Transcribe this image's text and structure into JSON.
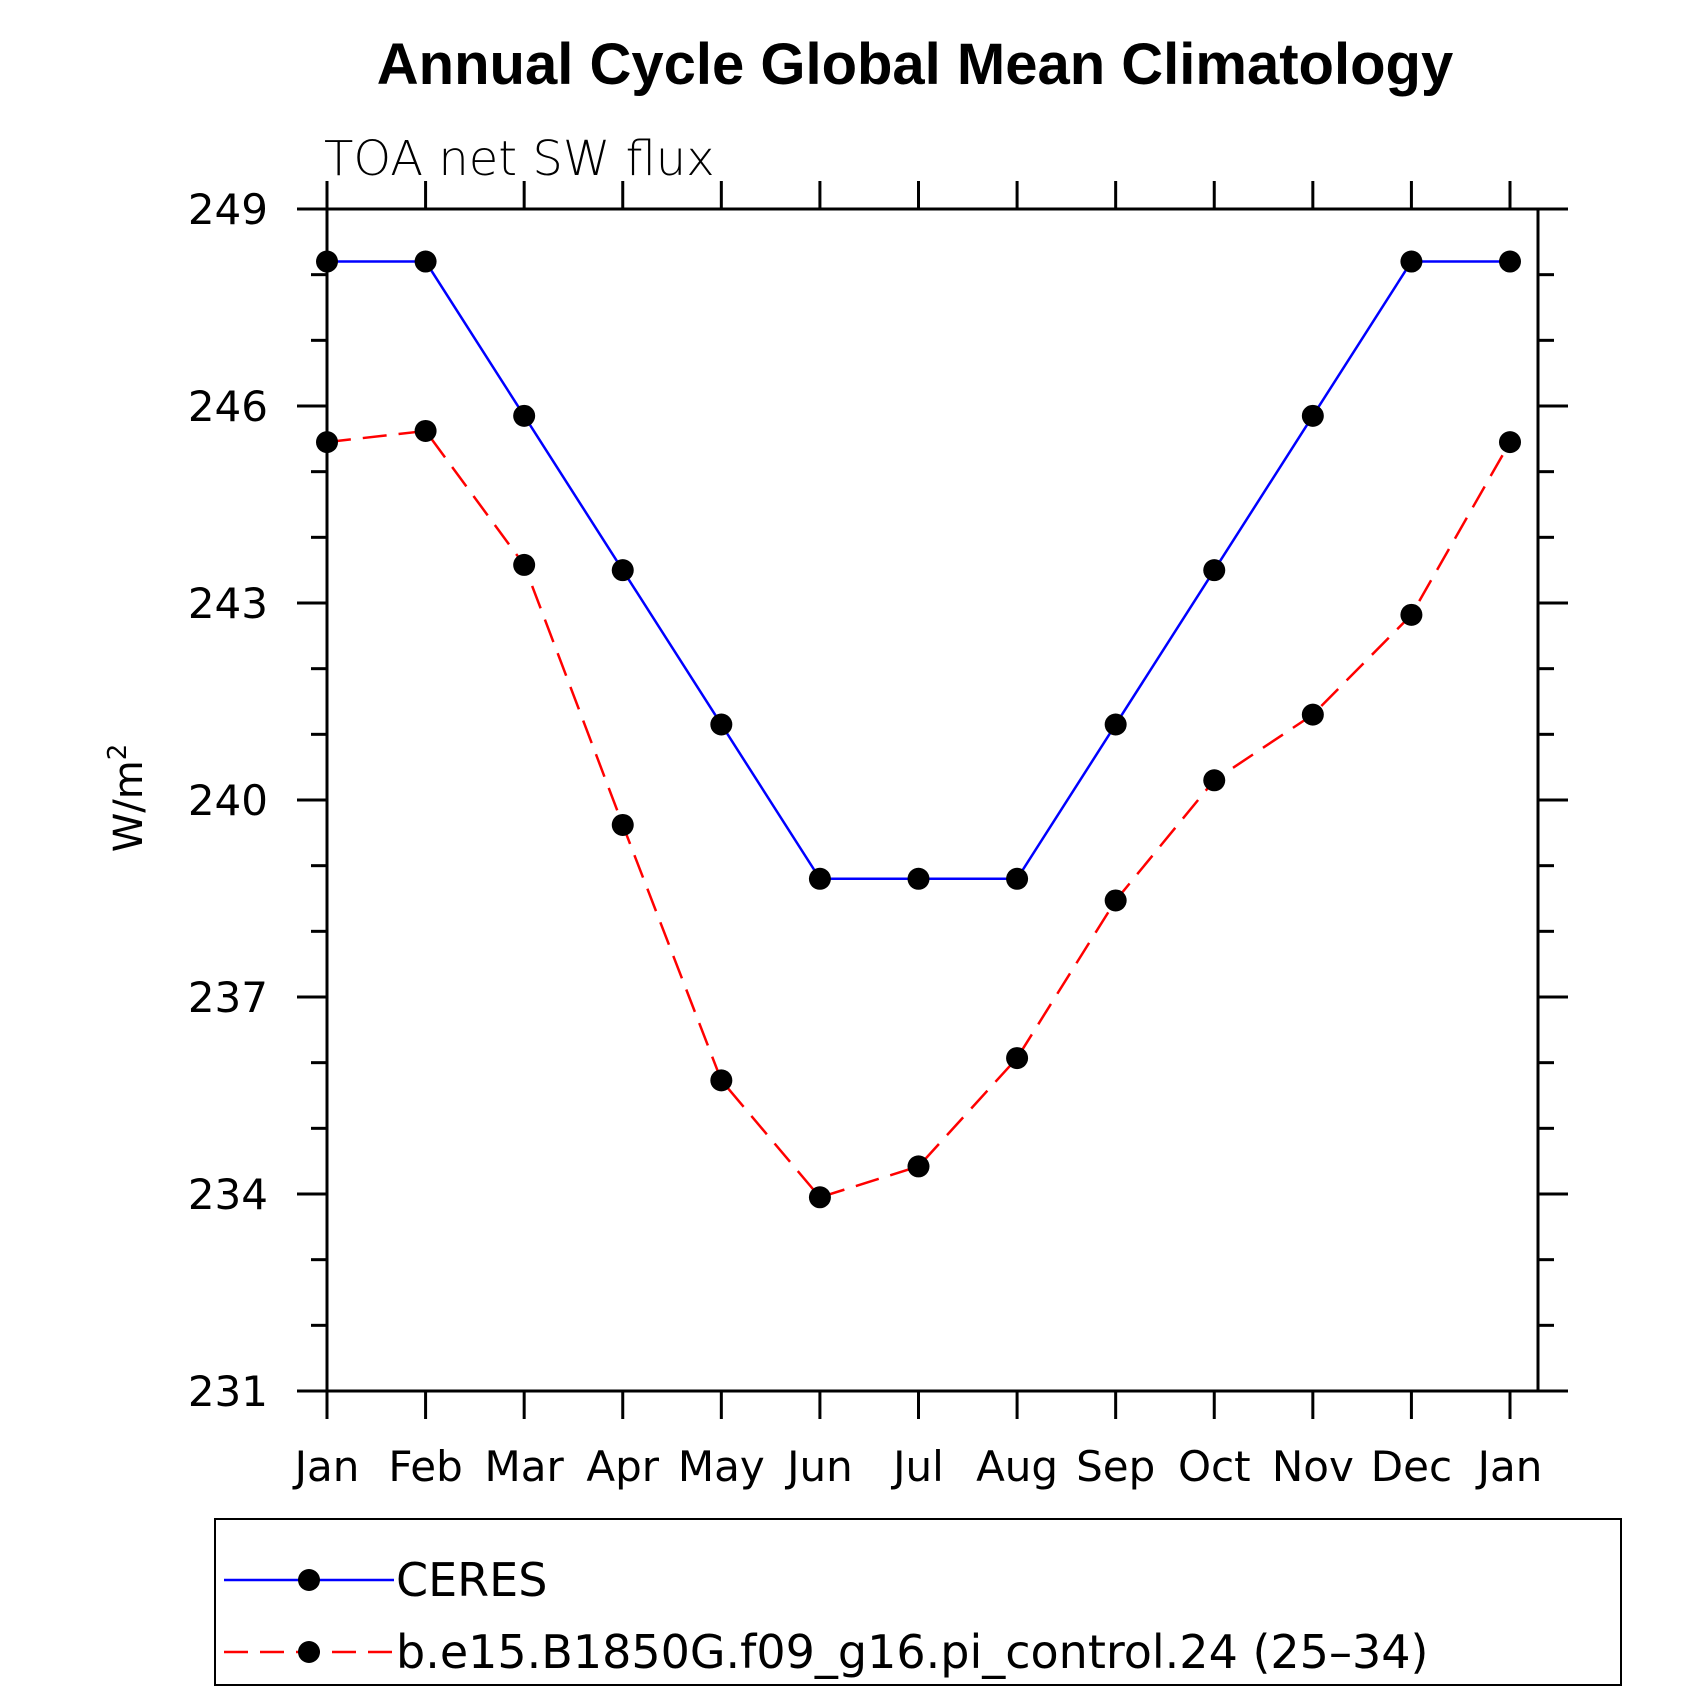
{
  "chart_data": {
    "type": "line",
    "title": "Annual Cycle Global Mean Climatology",
    "subtitle": "TOA net SW flux",
    "xlabel": "",
    "ylabel": "W/m",
    "ylabel_superscript": "2",
    "categories": [
      "Jan",
      "Feb",
      "Mar",
      "Apr",
      "May",
      "Jun",
      "Jul",
      "Aug",
      "Sep",
      "Oct",
      "Nov",
      "Dec",
      "Jan"
    ],
    "ylim": [
      231,
      249
    ],
    "yticks": [
      "249",
      "246",
      "243",
      "240",
      "237",
      "234",
      "231"
    ],
    "series": [
      {
        "name": "CERES",
        "color": "#0000ff",
        "dash": "solid",
        "values": [
          248.2,
          248.2,
          245.85,
          243.5,
          241.15,
          238.8,
          238.8,
          238.8,
          241.15,
          243.5,
          245.85,
          248.2,
          248.2
        ]
      },
      {
        "name": "b.e15.B1850G.f09_g16.pi_control.24 (25–34)",
        "color": "#ff0000",
        "dash": "dashed",
        "values": [
          245.45,
          245.62,
          243.58,
          239.62,
          235.73,
          233.95,
          234.42,
          236.07,
          238.47,
          240.3,
          241.3,
          242.82,
          245.45
        ]
      }
    ],
    "legend_position": "bottom"
  }
}
